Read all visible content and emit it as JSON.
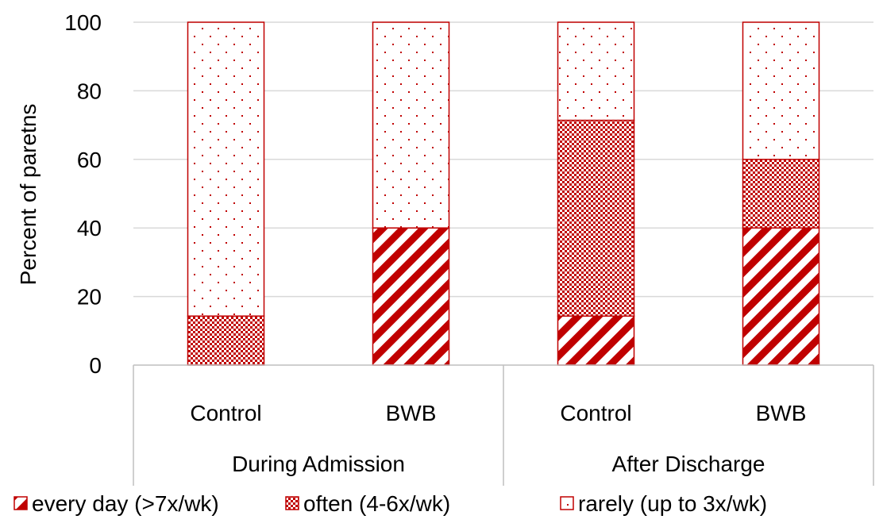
{
  "chart_data": {
    "type": "bar",
    "stacked": true,
    "title": "",
    "xlabel": "",
    "ylabel": "Percent of paretns",
    "ylim": [
      0,
      100
    ],
    "yticks": [
      0,
      20,
      40,
      60,
      80,
      100
    ],
    "grid": true,
    "legend_position": "bottom",
    "groups": [
      {
        "label": "During Admission",
        "categories": [
          "Control",
          "BWB"
        ]
      },
      {
        "label": "After Discharge",
        "categories": [
          "Control",
          "BWB"
        ]
      }
    ],
    "series": [
      {
        "name": "every day (>7x/wk)",
        "pattern": "diagonal-stripes",
        "values": [
          0,
          40,
          14.3,
          40
        ]
      },
      {
        "name": "often (4-6x/wk)",
        "pattern": "checker",
        "values": [
          14.3,
          0,
          57.1,
          20
        ]
      },
      {
        "name": "rarely (up to 3x/wk)",
        "pattern": "dots",
        "values": [
          85.7,
          60,
          28.6,
          40
        ]
      }
    ],
    "colors": {
      "accent": "#c00000",
      "grid": "#d9d9d9",
      "axis": "#bfbfbf"
    }
  }
}
